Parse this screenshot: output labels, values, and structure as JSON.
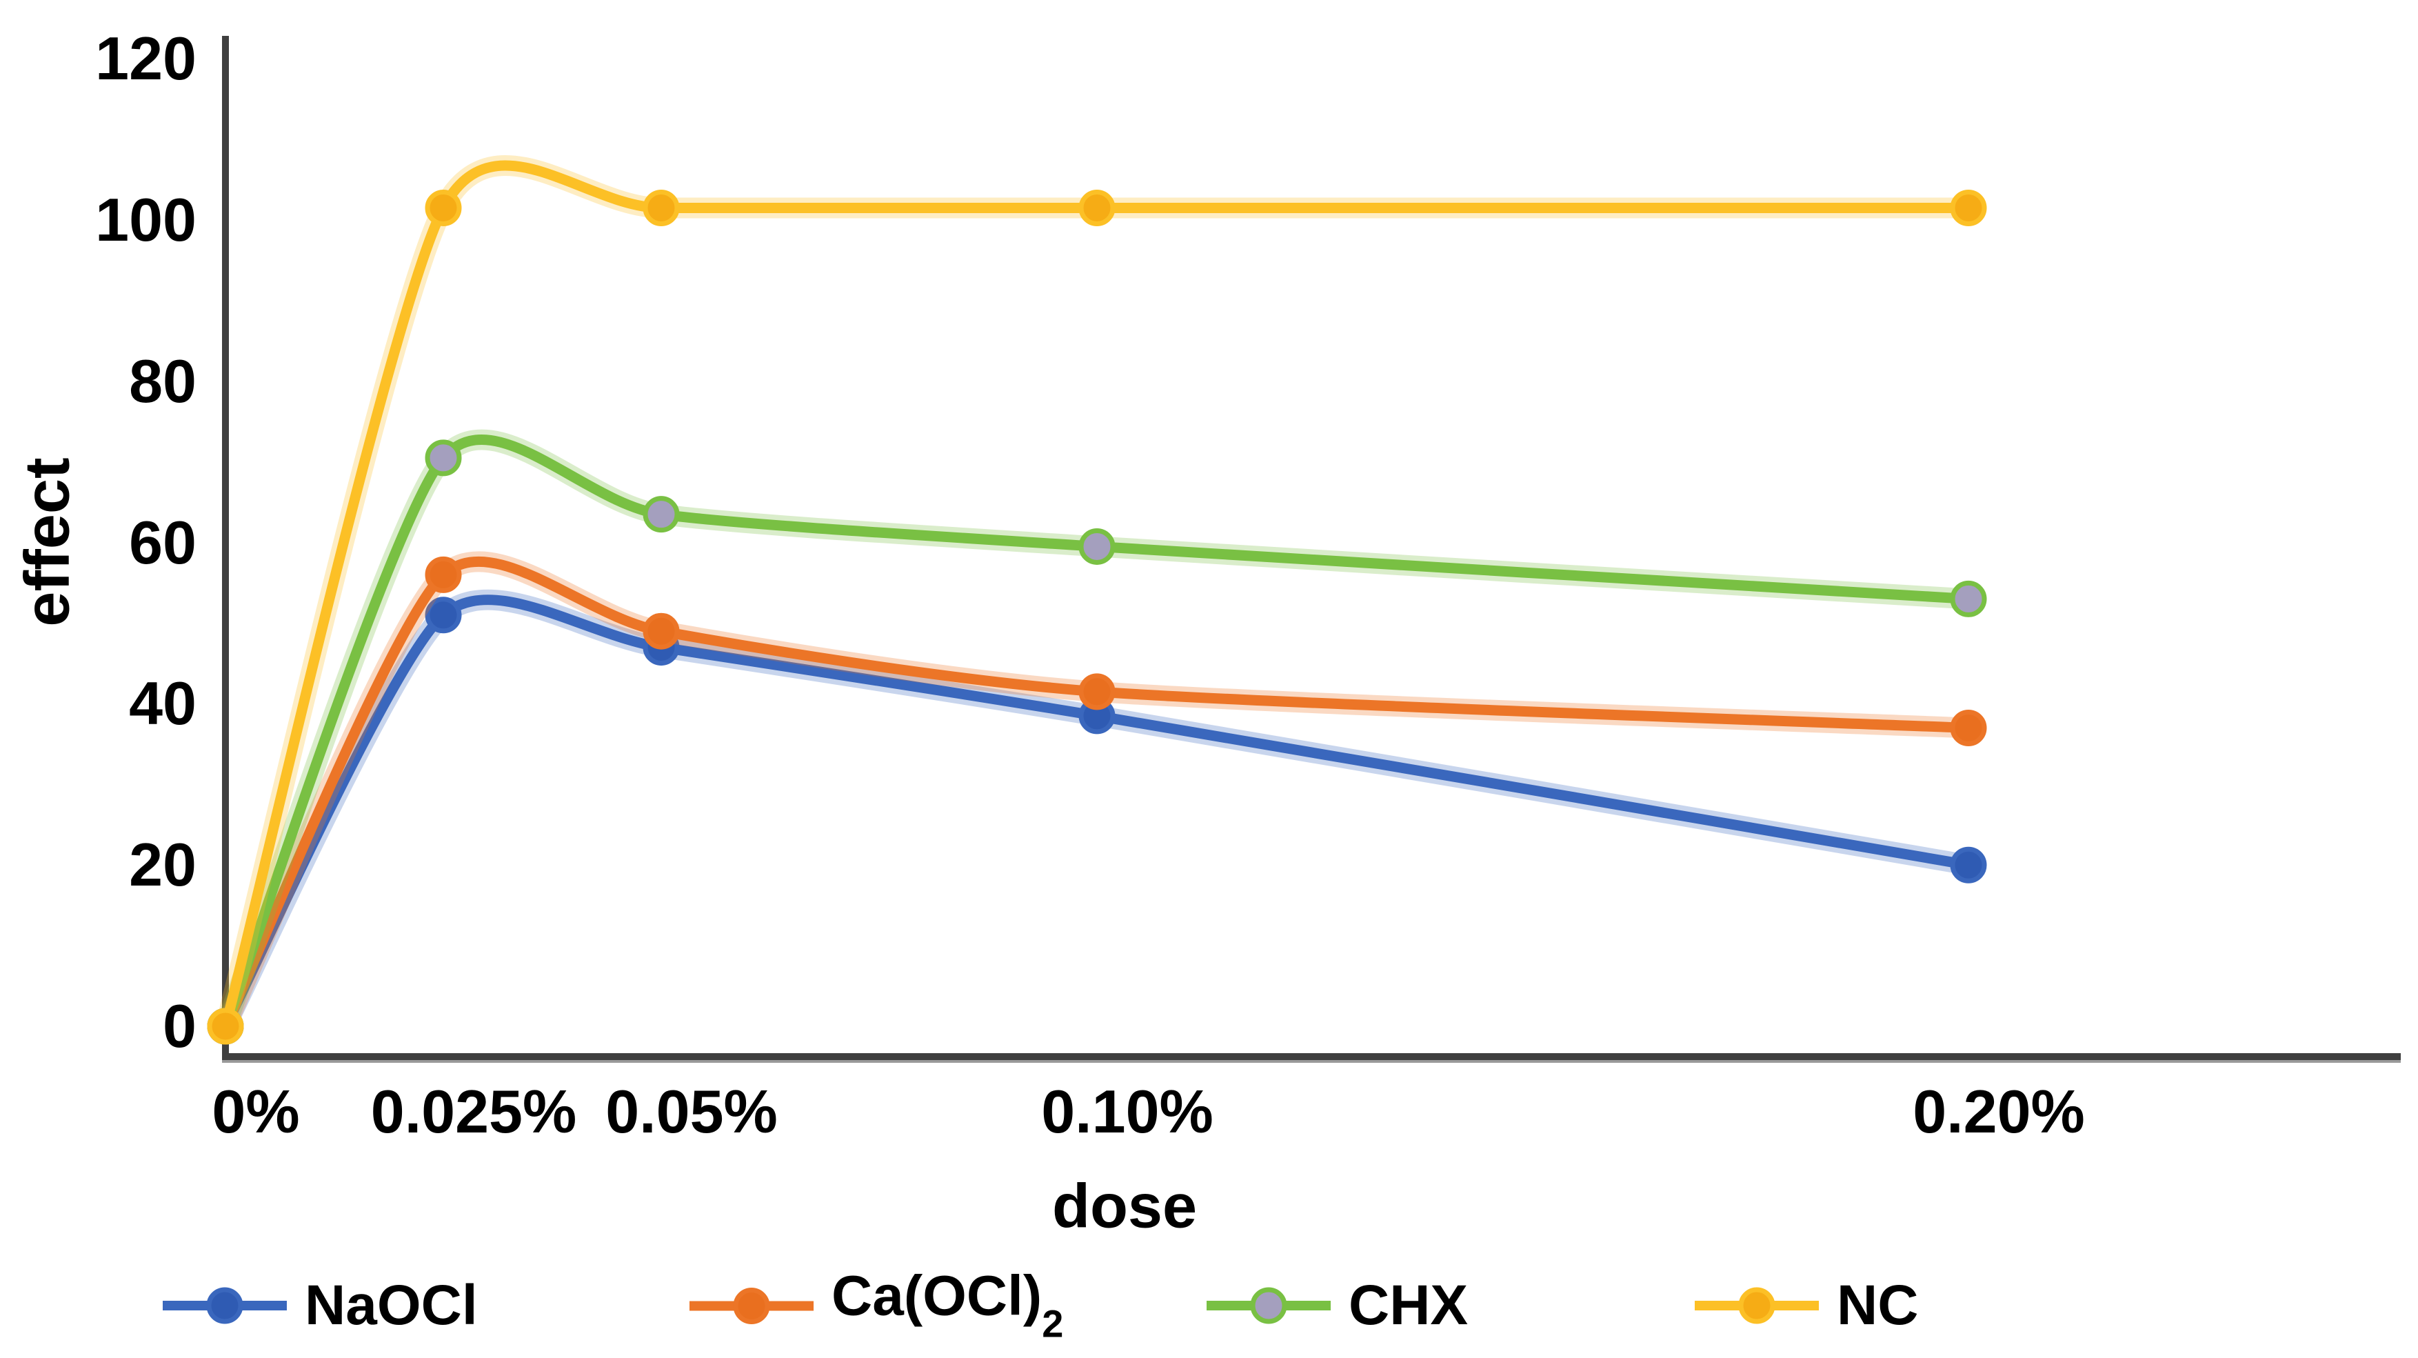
{
  "colors": {
    "background": "#ffffff",
    "axis": "#3f3f3f",
    "text": "#000000"
  },
  "chart_data": {
    "type": "line",
    "title": "",
    "xlabel": "dose",
    "ylabel": "effect",
    "x_tick_labels": [
      "0%",
      "0.025%",
      "0.05%",
      "0.10%",
      "0.20%"
    ],
    "x_values_percent": [
      0,
      0.025,
      0.05,
      0.1,
      0.2
    ],
    "yticks": [
      0,
      20,
      40,
      60,
      80,
      100,
      120
    ],
    "ylim": [
      -4,
      123
    ],
    "grid": false,
    "smooth_lines": true,
    "legend_position": "bottom",
    "series": [
      {
        "name": "NaOCl",
        "legend_main": "NaOCl",
        "legend_sub": "",
        "color": "#3a67bd",
        "marker_fill": "#2f5bb3",
        "values": [
          0,
          51,
          47,
          38.5,
          20
        ]
      },
      {
        "name": "Ca(OCl)2",
        "legend_main": "Ca(OCl)",
        "legend_sub": "2",
        "color": "#ec7527",
        "marker_fill": "#e96f1f",
        "values": [
          0,
          56,
          49,
          41.5,
          37
        ]
      },
      {
        "name": "CHX",
        "legend_main": "CHX",
        "legend_sub": "",
        "color": "#79c043",
        "marker_fill": "#a49fbe",
        "values": [
          0,
          70.5,
          63.5,
          59.5,
          53
        ]
      },
      {
        "name": "NC",
        "legend_main": "NC",
        "legend_sub": "",
        "color": "#fcc026",
        "marker_fill": "#f6ac15",
        "values": [
          0,
          101.5,
          101.5,
          101.5,
          101.5
        ]
      }
    ]
  }
}
